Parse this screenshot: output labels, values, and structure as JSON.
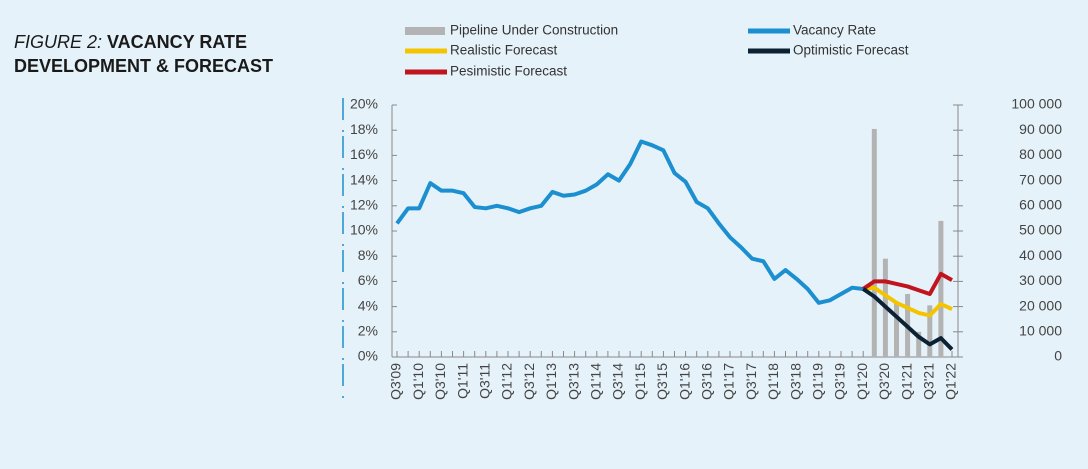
{
  "chart_data": {
    "type": "line",
    "title_label": "FIGURE 2:",
    "title": "VACANCY RATE DEVELOPMENT & FORECAST",
    "categories": [
      "Q3'09",
      null,
      "Q1'10",
      null,
      "Q3'10",
      null,
      "Q1'11",
      null,
      "Q3'11",
      null,
      "Q1'12",
      null,
      "Q3'12",
      null,
      "Q1'13",
      null,
      "Q3'13",
      null,
      "Q1'14",
      null,
      "Q3'14",
      null,
      "Q1'15",
      null,
      "Q3'15",
      null,
      "Q1'16",
      null,
      "Q3'16",
      null,
      "Q1'17",
      null,
      "Q3'17",
      null,
      "Q1'18",
      null,
      "Q3'18",
      null,
      "Q1'19",
      null,
      "Q3'19",
      null,
      "Q1'20",
      null,
      "Q3'20",
      null,
      "Q1'21",
      null,
      "Q3'21",
      null,
      "Q1'22"
    ],
    "series": [
      {
        "name": "Pipeline Under Construction",
        "type": "bar",
        "axis": "y2",
        "color": "#b3b3b3",
        "values": [
          null,
          null,
          null,
          null,
          null,
          null,
          null,
          null,
          null,
          null,
          null,
          null,
          null,
          null,
          null,
          null,
          null,
          null,
          null,
          null,
          null,
          null,
          null,
          null,
          null,
          null,
          null,
          null,
          null,
          null,
          null,
          null,
          null,
          null,
          null,
          null,
          null,
          null,
          null,
          null,
          null,
          null,
          null,
          90500,
          39000,
          22000,
          25000,
          10000,
          20500,
          54000,
          null
        ]
      },
      {
        "name": "Vacancy Rate",
        "color": "#1b8fd0",
        "values": [
          10.6,
          11.8,
          11.8,
          13.8,
          13.2,
          13.2,
          13.0,
          11.9,
          11.8,
          12.0,
          11.8,
          11.5,
          11.8,
          12.0,
          13.1,
          12.8,
          12.9,
          13.2,
          13.7,
          14.5,
          14.0,
          15.3,
          17.1,
          16.8,
          16.4,
          14.6,
          13.9,
          12.3,
          11.8,
          10.6,
          9.5,
          8.7,
          7.8,
          7.6,
          6.2,
          6.9,
          6.2,
          5.4,
          4.3,
          4.5,
          5.0,
          5.5,
          5.4,
          null,
          null,
          null,
          null,
          null,
          null,
          null,
          null
        ]
      },
      {
        "name": "Realistic Forecast",
        "color": "#f5c400",
        "values": [
          null,
          null,
          null,
          null,
          null,
          null,
          null,
          null,
          null,
          null,
          null,
          null,
          null,
          null,
          null,
          null,
          null,
          null,
          null,
          null,
          null,
          null,
          null,
          null,
          null,
          null,
          null,
          null,
          null,
          null,
          null,
          null,
          null,
          null,
          null,
          null,
          null,
          null,
          null,
          null,
          null,
          null,
          5.4,
          5.5,
          4.9,
          4.3,
          3.9,
          3.5,
          3.3,
          4.2,
          3.8
        ]
      },
      {
        "name": "Pesimistic Forecast",
        "color": "#c0141f",
        "values": [
          null,
          null,
          null,
          null,
          null,
          null,
          null,
          null,
          null,
          null,
          null,
          null,
          null,
          null,
          null,
          null,
          null,
          null,
          null,
          null,
          null,
          null,
          null,
          null,
          null,
          null,
          null,
          null,
          null,
          null,
          null,
          null,
          null,
          null,
          null,
          null,
          null,
          null,
          null,
          null,
          null,
          null,
          5.4,
          6.0,
          6.0,
          5.8,
          5.6,
          5.3,
          5.0,
          6.6,
          6.1
        ]
      },
      {
        "name": "Optimistic Forecast",
        "color": "#0c2233",
        "values": [
          null,
          null,
          null,
          null,
          null,
          null,
          null,
          null,
          null,
          null,
          null,
          null,
          null,
          null,
          null,
          null,
          null,
          null,
          null,
          null,
          null,
          null,
          null,
          null,
          null,
          null,
          null,
          null,
          null,
          null,
          null,
          null,
          null,
          null,
          null,
          null,
          null,
          null,
          null,
          null,
          null,
          null,
          5.4,
          4.8,
          4.0,
          3.2,
          2.4,
          1.6,
          1.0,
          1.5,
          0.6
        ]
      }
    ],
    "ylim": [
      0,
      20
    ],
    "yticks": [
      {
        "value": 0,
        "label": "0%"
      },
      {
        "value": 2,
        "label": "2%"
      },
      {
        "value": 4,
        "label": "4%"
      },
      {
        "value": 6,
        "label": "6%"
      },
      {
        "value": 8,
        "label": "8%"
      },
      {
        "value": 10,
        "label": "10%"
      },
      {
        "value": 12,
        "label": "12%"
      },
      {
        "value": 14,
        "label": "14%"
      },
      {
        "value": 16,
        "label": "16%"
      },
      {
        "value": 18,
        "label": "18%"
      },
      {
        "value": 20,
        "label": "20%"
      }
    ],
    "y2lim": [
      0,
      100000
    ],
    "y2ticks": [
      0,
      {
        "value": 10000,
        "label": "10 000"
      },
      {
        "value": 20000,
        "label": "20 000"
      },
      {
        "value": 30000,
        "label": "30 000"
      },
      {
        "value": 40000,
        "label": "40 000"
      },
      {
        "value": 50000,
        "label": "50 000"
      },
      {
        "value": 60000,
        "label": "60 000"
      },
      {
        "value": 70000,
        "label": "70 000"
      },
      {
        "value": 80000,
        "label": "80 000"
      },
      {
        "value": 90000,
        "label": "90 000"
      },
      {
        "value": 100000,
        "label": "100 000"
      }
    ],
    "grid": false
  }
}
